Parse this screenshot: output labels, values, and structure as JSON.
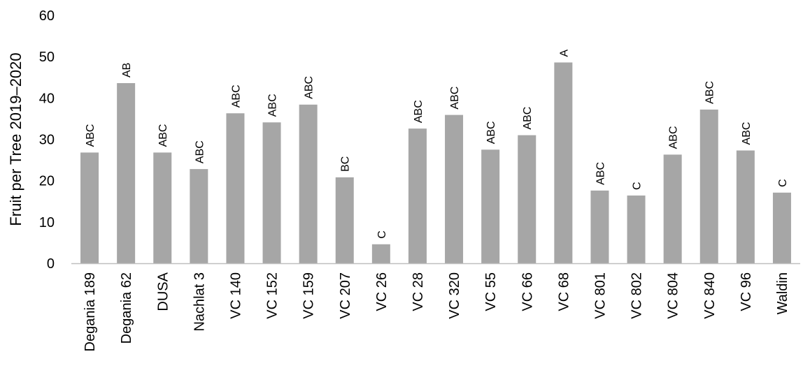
{
  "chart_data": {
    "type": "bar",
    "title": "",
    "xlabel": "",
    "ylabel": "Fruit per Tree 2019–2020",
    "ylim": [
      0,
      60
    ],
    "yticks": [
      0,
      10,
      20,
      30,
      40,
      50,
      60
    ],
    "grid": false,
    "legend": "none",
    "bar_color": "#a6a6a6",
    "categories": [
      "Degania 189",
      "Degania 62",
      "DUSA",
      "Nachlat 3",
      "VC 140",
      "VC 152",
      "VC 159",
      "VC 207",
      "VC 26",
      "VC 28",
      "VC 320",
      "VC 55",
      "VC 66",
      "VC 68",
      "VC 801",
      "VC 802",
      "VC 804",
      "VC 840",
      "VC 96",
      "Waldin"
    ],
    "values": [
      26.8,
      43.6,
      26.8,
      22.8,
      36.3,
      34.1,
      38.4,
      20.8,
      4.6,
      32.6,
      35.9,
      27.5,
      31.0,
      48.6,
      17.6,
      16.4,
      26.3,
      37.2,
      27.3,
      17.1
    ],
    "data_labels": [
      "ABC",
      "AB",
      "ABC",
      "ABC",
      "ABC",
      "ABC",
      "ABC",
      "BC",
      "C",
      "ABC",
      "ABC",
      "ABC",
      "ABC",
      "A",
      "ABC",
      "C",
      "ABC",
      "ABC",
      "ABC",
      "C"
    ]
  }
}
